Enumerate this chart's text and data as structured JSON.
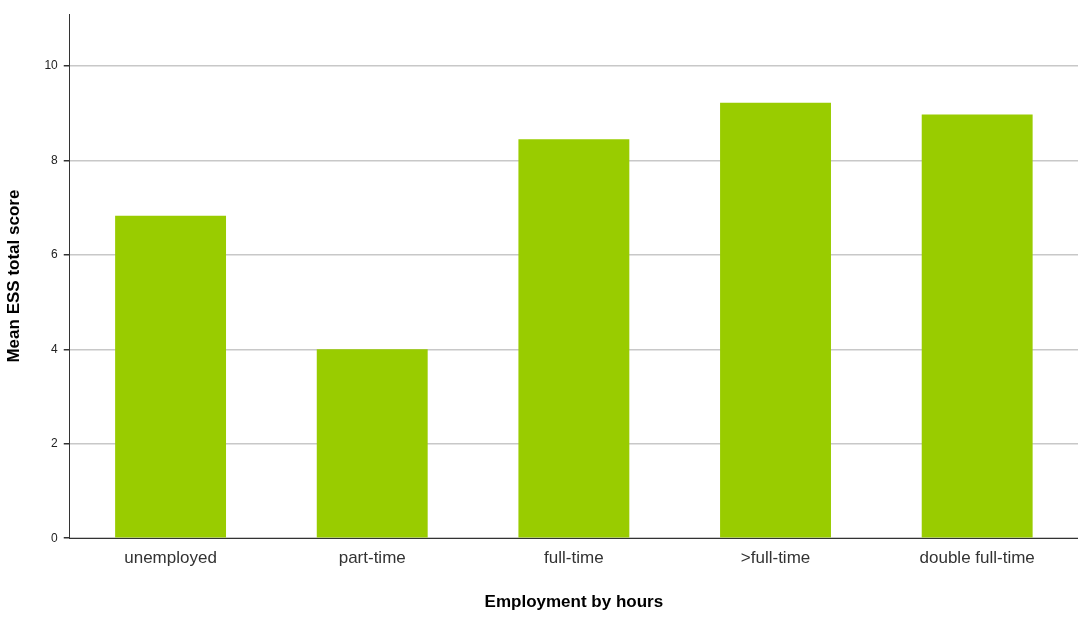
{
  "chart_data": {
    "type": "bar",
    "xlabel": "Employment by hours",
    "ylabel": "Mean ESS total score",
    "categories": [
      "unemployed",
      "part-time",
      "full-time",
      ">full-time",
      "double full-time"
    ],
    "values": [
      6.83,
      4.0,
      8.45,
      9.22,
      8.97
    ],
    "color": "#99cc00",
    "ylim": [
      0,
      11.1
    ],
    "yticks": [
      0,
      2,
      4,
      6,
      8,
      10
    ],
    "grid": "y",
    "legend": false
  }
}
